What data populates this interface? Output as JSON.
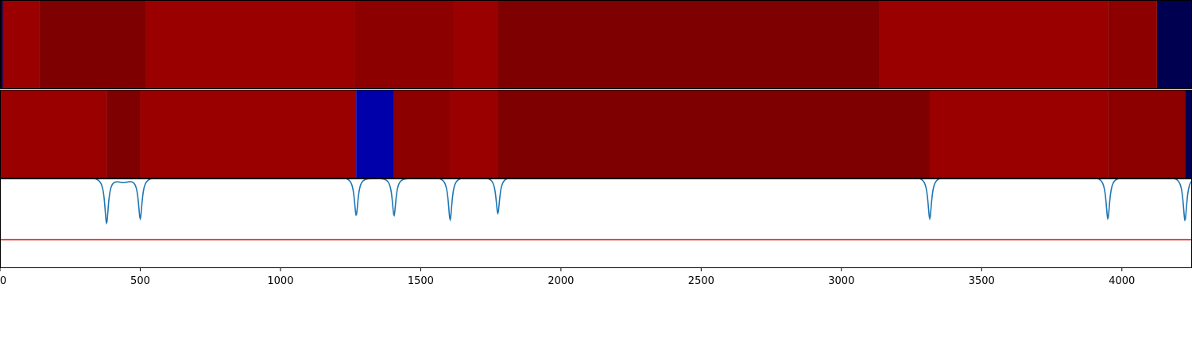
{
  "chart_data": {
    "type": "heatmap",
    "title": "",
    "xlabel": "",
    "ylabel": "",
    "xlim": [
      0,
      4250
    ],
    "x_ticks": [
      0,
      500,
      1000,
      1500,
      2000,
      2500,
      3000,
      3500,
      4000
    ],
    "x_tick_labels": [
      "0",
      "500",
      "1000",
      "1500",
      "2000",
      "2500",
      "3000",
      "3500",
      "4000"
    ],
    "grid": false,
    "legend": "none",
    "segment_tracks": [
      {
        "name": "",
        "segments": [
          {
            "start": 0,
            "end": 10,
            "color": "#000060"
          },
          {
            "start": 10,
            "end": 140,
            "color": "#9a0000"
          },
          {
            "start": 140,
            "end": 520,
            "color": "#7e0000"
          },
          {
            "start": 520,
            "end": 1265,
            "color": "#9a0000"
          },
          {
            "start": 1265,
            "end": 1615,
            "color": "#8c0000"
          },
          {
            "start": 1615,
            "end": 1775,
            "color": "#9a0000"
          },
          {
            "start": 1775,
            "end": 3135,
            "color": "#7e0000"
          },
          {
            "start": 3135,
            "end": 3950,
            "color": "#9a0000"
          },
          {
            "start": 3950,
            "end": 4125,
            "color": "#8c0000"
          },
          {
            "start": 4125,
            "end": 4250,
            "color": "#000050"
          }
        ]
      },
      {
        "name": "",
        "segments": [
          {
            "start": 0,
            "end": 380,
            "color": "#9a0000"
          },
          {
            "start": 380,
            "end": 500,
            "color": "#7e0000"
          },
          {
            "start": 500,
            "end": 1270,
            "color": "#9a0000"
          },
          {
            "start": 1270,
            "end": 1405,
            "color": "#0000aa"
          },
          {
            "start": 1405,
            "end": 1605,
            "color": "#8c0000"
          },
          {
            "start": 1605,
            "end": 1775,
            "color": "#9a0000"
          },
          {
            "start": 1775,
            "end": 3315,
            "color": "#7e0000"
          },
          {
            "start": 3315,
            "end": 3950,
            "color": "#9a0000"
          },
          {
            "start": 3950,
            "end": 4225,
            "color": "#8c0000"
          },
          {
            "start": 4225,
            "end": 4250,
            "color": "#000050"
          }
        ]
      }
    ],
    "line_panel": {
      "ylim": [
        0,
        1
      ],
      "baseline": 1.0,
      "threshold": 0.32,
      "threshold_color": "#e00000",
      "line_color": "#1f77b4",
      "dips": [
        {
          "x": 380,
          "depth": 0.51
        },
        {
          "x": 500,
          "depth": 0.46
        },
        {
          "x": 1270,
          "depth": 0.43
        },
        {
          "x": 1405,
          "depth": 0.43
        },
        {
          "x": 1605,
          "depth": 0.48
        },
        {
          "x": 1775,
          "depth": 0.41
        },
        {
          "x": 3315,
          "depth": 0.47
        },
        {
          "x": 3950,
          "depth": 0.47
        },
        {
          "x": 4225,
          "depth": 0.49
        }
      ],
      "shoulders": [
        {
          "x": 440,
          "depth": 0.05
        },
        {
          "x": 1335,
          "depth": 0.01
        },
        {
          "x": 1465,
          "depth": 0.01
        },
        {
          "x": 4040,
          "depth": 0.01
        }
      ]
    }
  }
}
